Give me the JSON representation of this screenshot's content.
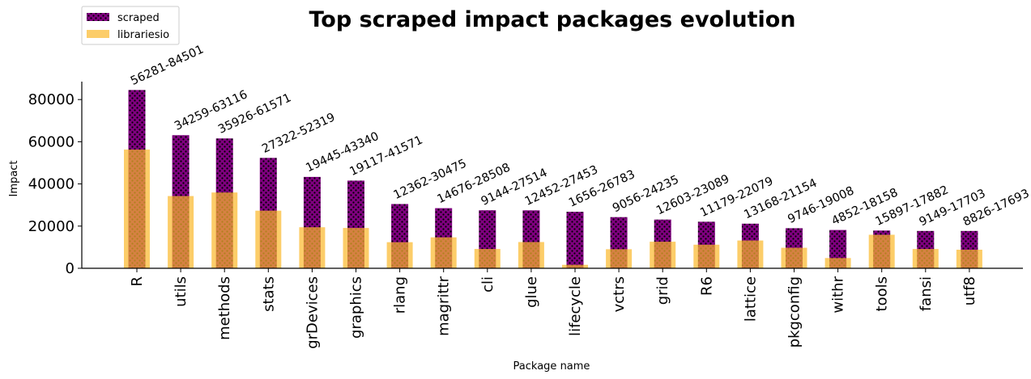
{
  "chart_data": {
    "type": "bar",
    "title": "Top scraped impact packages evolution",
    "xlabel": "Package name",
    "ylabel": "Impact",
    "ylim": [
      0,
      88500
    ],
    "yticks": [
      0,
      20000,
      40000,
      60000,
      80000
    ],
    "grid": false,
    "legend_position": "top-left",
    "categories": [
      "R",
      "utils",
      "methods",
      "stats",
      "grDevices",
      "graphics",
      "rlang",
      "magrittr",
      "cli",
      "glue",
      "lifecycle",
      "vctrs",
      "grid",
      "R6",
      "lattice",
      "pkgconfig",
      "withr",
      "tools",
      "fansi",
      "utf8"
    ],
    "series": [
      {
        "name": "scraped",
        "color": "#800080",
        "pattern": "dots",
        "values": [
          84501,
          63116,
          61571,
          52319,
          43340,
          41571,
          30475,
          28508,
          27514,
          27453,
          26783,
          24235,
          23089,
          22079,
          21154,
          19008,
          18158,
          17882,
          17703,
          17693
        ]
      },
      {
        "name": "librariesio",
        "color": "#FBB829",
        "values": [
          56281,
          34259,
          35926,
          27322,
          19445,
          19117,
          12362,
          14676,
          9144,
          12452,
          1656,
          9056,
          12603,
          11179,
          13168,
          9746,
          4852,
          15897,
          9149,
          8826
        ]
      }
    ],
    "annotations": [
      "56281-84501",
      "34259-63116",
      "35926-61571",
      "27322-52319",
      "19445-43340",
      "19117-41571",
      "12362-30475",
      "14676-28508",
      "9144-27514",
      "12452-27453",
      "1656-26783",
      "9056-24235",
      "12603-23089",
      "11179-22079",
      "13168-21154",
      "9746-19008",
      "4852-18158",
      "15897-17882",
      "9149-17703",
      "8826-17693"
    ]
  }
}
